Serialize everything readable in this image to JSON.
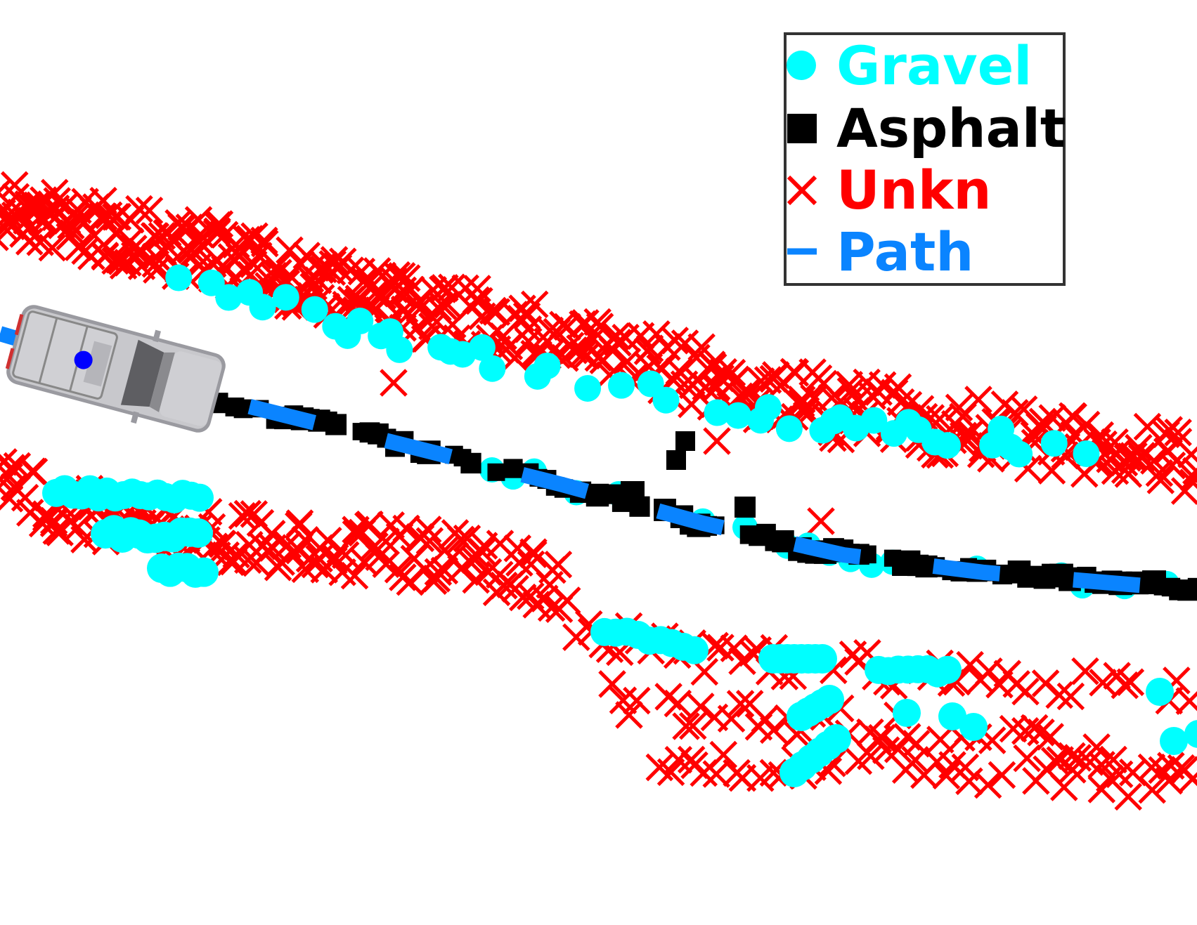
{
  "chart_data": {
    "type": "scatter",
    "title": "",
    "xlabel": "",
    "ylabel": "",
    "grid": false,
    "legend_placement": "top-right",
    "series": [
      {
        "name": "Gravel",
        "marker": "circle",
        "color": "#00ffff"
      },
      {
        "name": "Asphalt",
        "marker": "square",
        "color": "#000000"
      },
      {
        "name": "Unkn",
        "marker": "x",
        "color": "#ff0000"
      },
      {
        "name": "Path",
        "marker": "dashed-line",
        "color": "#0a84ff"
      }
    ],
    "vehicle": {
      "body_color": "#c8c8cc",
      "marker_color": "#0000ff"
    }
  }
}
